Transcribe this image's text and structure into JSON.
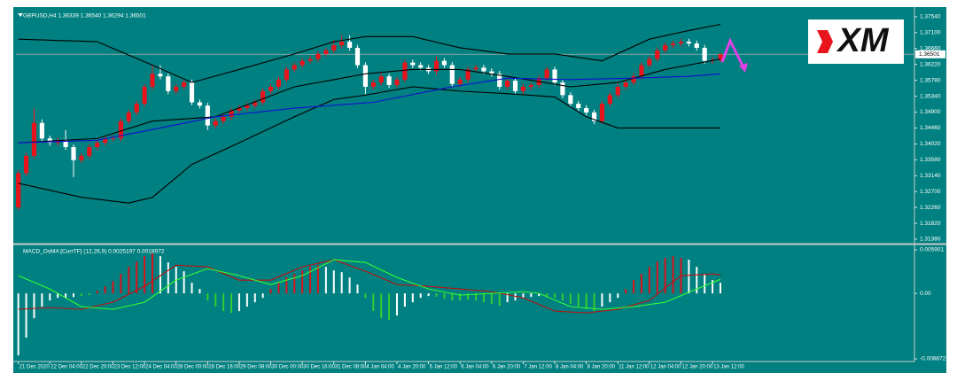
{
  "logo": "XM",
  "chart_data": [
    {
      "type": "candlestick",
      "title": "GBPUSD,H4 1.36339 1.36540 1.36294 1.36501",
      "up_color": "#e8141c",
      "down_color": "#ffffff",
      "open": [
        1.3226,
        1.3321,
        1.3369,
        1.346,
        1.3417,
        1.3405,
        1.3412,
        1.3393,
        1.3357,
        1.3369,
        1.3393,
        1.3405,
        1.3417,
        1.3417,
        1.3465,
        1.3489,
        1.3513,
        1.356,
        1.3596,
        1.3589,
        1.3548,
        1.356,
        1.3572,
        1.3517,
        1.3508,
        1.3453,
        1.3465,
        1.3477,
        1.3494,
        1.3501,
        1.3508,
        1.3517,
        1.3548,
        1.356,
        1.358,
        1.3608,
        1.362,
        1.3632,
        1.3637,
        1.3651,
        1.3661,
        1.3675,
        1.3685,
        1.3668,
        1.362,
        1.356,
        1.3572,
        1.3589,
        1.3565,
        1.358,
        1.3627,
        1.362,
        1.3613,
        1.3603,
        1.3632,
        1.362,
        1.3568,
        1.358,
        1.3608,
        1.3613,
        1.3603,
        1.3596,
        1.356,
        1.3577,
        1.3548,
        1.356,
        1.3565,
        1.3584,
        1.3608,
        1.3572,
        1.3537,
        1.3513,
        1.3501,
        1.3489,
        1.3465,
        1.3513,
        1.3537,
        1.356,
        1.3572,
        1.3589,
        1.362,
        1.3637,
        1.3661,
        1.3675,
        1.368,
        1.3685,
        1.368,
        1.3668,
        1.3632,
        1.36339
      ],
      "high": [
        1.3329,
        1.3377,
        1.35,
        1.347,
        1.3425,
        1.342,
        1.344,
        1.3401,
        1.3377,
        1.3401,
        1.3413,
        1.3425,
        1.3425,
        1.3473,
        1.3497,
        1.3521,
        1.3568,
        1.362,
        1.362,
        1.3597,
        1.3568,
        1.358,
        1.358,
        1.3525,
        1.3516,
        1.3473,
        1.3485,
        1.3502,
        1.3509,
        1.3516,
        1.3525,
        1.3556,
        1.3568,
        1.3588,
        1.3616,
        1.3628,
        1.364,
        1.3645,
        1.3659,
        1.3669,
        1.369,
        1.3703,
        1.3703,
        1.3676,
        1.3628,
        1.358,
        1.3597,
        1.3597,
        1.3588,
        1.3635,
        1.3635,
        1.3628,
        1.3621,
        1.3645,
        1.364,
        1.3628,
        1.3588,
        1.3616,
        1.3621,
        1.3621,
        1.3611,
        1.3604,
        1.3585,
        1.3585,
        1.3568,
        1.3573,
        1.3592,
        1.3616,
        1.3616,
        1.358,
        1.3545,
        1.3521,
        1.3509,
        1.3497,
        1.3521,
        1.3545,
        1.3568,
        1.358,
        1.3597,
        1.3628,
        1.3645,
        1.3669,
        1.3683,
        1.3688,
        1.3693,
        1.3693,
        1.3688,
        1.3676,
        1.3642,
        1.3654
      ],
      "low": [
        1.3218,
        1.3313,
        1.3361,
        1.3409,
        1.3397,
        1.3397,
        1.3385,
        1.331,
        1.3349,
        1.3361,
        1.3385,
        1.3397,
        1.3409,
        1.3409,
        1.3457,
        1.3481,
        1.3505,
        1.3552,
        1.3581,
        1.354,
        1.354,
        1.3552,
        1.3509,
        1.35,
        1.344,
        1.3445,
        1.3457,
        1.3469,
        1.3486,
        1.3493,
        1.35,
        1.3509,
        1.354,
        1.3552,
        1.3572,
        1.36,
        1.3612,
        1.3624,
        1.3629,
        1.3643,
        1.3653,
        1.3667,
        1.366,
        1.3612,
        1.354,
        1.3552,
        1.3564,
        1.3557,
        1.3557,
        1.3572,
        1.3612,
        1.3605,
        1.3595,
        1.3595,
        1.3612,
        1.356,
        1.356,
        1.3572,
        1.36,
        1.3595,
        1.3588,
        1.3552,
        1.3552,
        1.354,
        1.354,
        1.3552,
        1.3557,
        1.3576,
        1.3564,
        1.3529,
        1.3505,
        1.3493,
        1.3481,
        1.3457,
        1.3457,
        1.3505,
        1.3529,
        1.3552,
        1.3564,
        1.3581,
        1.3612,
        1.3629,
        1.3653,
        1.3667,
        1.3672,
        1.3672,
        1.366,
        1.3624,
        1.3624,
        1.36294
      ],
      "close": [
        1.3321,
        1.3369,
        1.346,
        1.3417,
        1.3405,
        1.3412,
        1.3393,
        1.3357,
        1.3369,
        1.3393,
        1.3405,
        1.3417,
        1.3417,
        1.3465,
        1.3489,
        1.3513,
        1.356,
        1.3596,
        1.3589,
        1.3548,
        1.356,
        1.3572,
        1.3517,
        1.3508,
        1.3453,
        1.3465,
        1.3477,
        1.3494,
        1.3501,
        1.3508,
        1.3517,
        1.3548,
        1.356,
        1.358,
        1.3608,
        1.362,
        1.3632,
        1.3637,
        1.3651,
        1.3661,
        1.3675,
        1.3685,
        1.3668,
        1.362,
        1.356,
        1.3572,
        1.3589,
        1.3565,
        1.358,
        1.3627,
        1.362,
        1.3613,
        1.3603,
        1.3632,
        1.362,
        1.3568,
        1.358,
        1.3608,
        1.3613,
        1.3603,
        1.3596,
        1.356,
        1.3577,
        1.3548,
        1.356,
        1.3565,
        1.3584,
        1.3608,
        1.3572,
        1.3537,
        1.3513,
        1.3501,
        1.3489,
        1.3465,
        1.3513,
        1.3537,
        1.356,
        1.3572,
        1.3589,
        1.362,
        1.3637,
        1.3661,
        1.3675,
        1.368,
        1.3685,
        1.368,
        1.3668,
        1.3632,
        1.3634,
        1.36501
      ],
      "series": [
        {
          "color": "#000000",
          "x": [
            0,
            10,
            17,
            22,
            28,
            35,
            40,
            44,
            50,
            56,
            62,
            68,
            74,
            80,
            85,
            89
          ],
          "values": [
            1.3692,
            1.3685,
            1.362,
            1.3572,
            1.3608,
            1.3651,
            1.3685,
            1.3699,
            1.3699,
            1.3668,
            1.3651,
            1.3651,
            1.3632,
            1.3692,
            1.3716,
            1.3733
          ]
        },
        {
          "color": "#000000",
          "x": [
            0,
            8,
            14,
            17,
            22,
            28,
            35,
            40,
            44,
            50,
            56,
            62,
            68,
            72,
            76,
            89
          ],
          "values": [
            1.3293,
            1.3254,
            1.3238,
            1.3254,
            1.3345,
            1.3405,
            1.3477,
            1.3525,
            1.3537,
            1.356,
            1.3548,
            1.3541,
            1.3532,
            1.3477,
            1.3446,
            1.3446
          ]
        },
        {
          "color": "#000000",
          "x": [
            0,
            10,
            17,
            25,
            35,
            44,
            50,
            56,
            62,
            70,
            76,
            82,
            89
          ],
          "values": [
            1.3405,
            1.3417,
            1.3465,
            1.3477,
            1.356,
            1.3596,
            1.3608,
            1.3608,
            1.3589,
            1.356,
            1.3572,
            1.3608,
            1.3637
          ]
        },
        {
          "color": "#1010d0",
          "x": [
            0,
            10,
            18,
            25,
            35,
            45,
            55,
            62,
            70,
            78,
            85,
            89
          ],
          "values": [
            1.3405,
            1.3412,
            1.3446,
            1.3477,
            1.3501,
            1.3517,
            1.356,
            1.3584,
            1.358,
            1.3584,
            1.3589,
            1.3596
          ]
        }
      ],
      "current_price": 1.36501,
      "xlim": [
        -0.3,
        113.6
      ],
      "ylim": [
        1.3133,
        1.3771
      ],
      "yticks": [
        {
          "value": 1.3754,
          "label": "1.37540"
        },
        {
          "value": 1.371,
          "label": "1.37100"
        },
        {
          "value": 1.3666,
          "label": "1.36660"
        },
        {
          "value": 1.3622,
          "label": "1.36220"
        },
        {
          "value": 1.3578,
          "label": "1.35780"
        },
        {
          "value": 1.3534,
          "label": "1.35340"
        },
        {
          "value": 1.349,
          "label": "1.34900"
        },
        {
          "value": 1.3446,
          "label": "1.34460"
        },
        {
          "value": 1.3402,
          "label": "1.34020"
        },
        {
          "value": 1.3358,
          "label": "1.33580"
        },
        {
          "value": 1.3314,
          "label": "1.33140"
        },
        {
          "value": 1.327,
          "label": "1.32700"
        },
        {
          "value": 1.3226,
          "label": "1.32260"
        },
        {
          "value": 1.3182,
          "label": "1.31820"
        },
        {
          "value": 1.3138,
          "label": "1.31380"
        }
      ],
      "grid": false
    },
    {
      "type": "bar",
      "title": "MACD_OsMA [CurrTF] (12,26,9) 0.0025197 0.0018972",
      "values": [
        -0.0084,
        -0.006,
        -0.00336,
        -0.0018,
        -0.00096,
        -0.0006,
        -0.0006,
        -0.00048,
        -0.00036,
        -0.00024,
        0.00036,
        0.00096,
        0.00168,
        0.00264,
        0.0036,
        0.00432,
        0.00504,
        0.0054,
        0.00504,
        0.0042,
        0.0036,
        0.003,
        0.00144,
        0.0006,
        -0.00096,
        -0.0018,
        -0.0024,
        -0.00264,
        -0.0024,
        -0.0018,
        -0.0012,
        -0.0006,
        0.0006,
        0.00144,
        0.00216,
        0.00264,
        0.00312,
        0.0036,
        0.00384,
        0.0036,
        0.00312,
        0.00288,
        0.00216,
        0.0012,
        -0.0006,
        -0.0024,
        -0.00336,
        -0.0036,
        -0.003,
        -0.0018,
        -0.0012,
        -0.0006,
        -0.00036,
        -0.00048,
        -0.00072,
        -0.00096,
        -0.00096,
        -0.00084,
        -0.00096,
        -0.0012,
        -0.00144,
        -0.00168,
        -0.0012,
        -0.00096,
        -0.0006,
        -0.00048,
        -0.00036,
        -0.00036,
        -0.0006,
        -0.00096,
        -0.00144,
        -0.0018,
        -0.00216,
        -0.0024,
        -0.0018,
        -0.0012,
        -0.0006,
        0.0006,
        0.0018,
        0.00264,
        0.0036,
        0.00432,
        0.0048,
        0.00504,
        0.0048,
        0.00456,
        0.0036,
        0.00264,
        0.0018,
        0.00144
      ],
      "bar_colors": [
        "#ffffff",
        "#ffffff",
        "#ffffff",
        "#ffffff",
        "#ffffff",
        "#ffffff",
        "#ffffff",
        "#ffffff",
        "#33cc33",
        "#33cc33",
        "#d8141c",
        "#d8141c",
        "#d8141c",
        "#d8141c",
        "#d8141c",
        "#d8141c",
        "#d8141c",
        "#d8141c",
        "#ffffff",
        "#ffffff",
        "#ffffff",
        "#ffffff",
        "#ffffff",
        "#ffffff",
        "#33cc33",
        "#33cc33",
        "#33cc33",
        "#33cc33",
        "#ffffff",
        "#ffffff",
        "#ffffff",
        "#ffffff",
        "#d8141c",
        "#d8141c",
        "#d8141c",
        "#d8141c",
        "#d8141c",
        "#d8141c",
        "#d8141c",
        "#ffffff",
        "#ffffff",
        "#ffffff",
        "#ffffff",
        "#ffffff",
        "#33cc33",
        "#33cc33",
        "#33cc33",
        "#33cc33",
        "#ffffff",
        "#ffffff",
        "#ffffff",
        "#ffffff",
        "#ffffff",
        "#33cc33",
        "#33cc33",
        "#33cc33",
        "#33cc33",
        "#33cc33",
        "#33cc33",
        "#33cc33",
        "#33cc33",
        "#33cc33",
        "#ffffff",
        "#ffffff",
        "#ffffff",
        "#ffffff",
        "#ffffff",
        "#33cc33",
        "#33cc33",
        "#33cc33",
        "#33cc33",
        "#33cc33",
        "#33cc33",
        "#33cc33",
        "#ffffff",
        "#ffffff",
        "#ffffff",
        "#d8141c",
        "#d8141c",
        "#d8141c",
        "#d8141c",
        "#d8141c",
        "#d8141c",
        "#d8141c",
        "#d8141c",
        "#ffffff",
        "#ffffff",
        "#ffffff",
        "#ffffff",
        "#ffffff"
      ],
      "series": [
        {
          "color": "#c01010",
          "x": [
            0,
            4,
            8,
            12,
            16,
            20,
            24,
            28,
            32,
            36,
            40,
            44,
            48,
            52,
            56,
            60,
            64,
            68,
            72,
            76,
            80,
            84,
            88,
            89
          ],
          "values": [
            -0.00216,
            -0.00192,
            -0.00216,
            -0.0012,
            0.00096,
            0.00384,
            0.0036,
            0.0018,
            0.0018,
            0.0036,
            0.00456,
            0.003,
            0.0012,
            0.00096,
            0.0006,
            0.00024,
            -0.0006,
            -0.0024,
            -0.00264,
            -0.00216,
            -0.00096,
            0.0024,
            0.00264,
            0.00252
          ]
        },
        {
          "color": "#33ff33",
          "x": [
            0,
            4,
            8,
            12,
            16,
            20,
            24,
            28,
            32,
            36,
            40,
            44,
            48,
            52,
            56,
            60,
            64,
            66,
            70,
            74,
            78,
            82,
            86,
            89
          ],
          "values": [
            0.0024,
            0.0006,
            -0.0018,
            -0.00216,
            -0.0012,
            0.0018,
            0.00336,
            0.0024,
            0.0012,
            0.0024,
            0.00456,
            0.0042,
            0.00216,
            0.0006,
            -0.00024,
            0,
            0.00024,
            0,
            -0.0018,
            -0.00216,
            -0.0018,
            -0.0012,
            0.0006,
            0.0019
          ]
        }
      ],
      "xlim": [
        -0.3,
        113.6
      ],
      "ylim": [
        -0.00923,
        0.00638
      ],
      "yticks": [
        0.005901,
        {
          "value": 0,
          "label": "0.00"
        },
        -0.008872
      ],
      "xticks": [
        {
          "value": 0,
          "label": "21 Dec 2020"
        },
        {
          "value": 4,
          "label": "22 Dec 04:00"
        },
        {
          "value": 8,
          "label": "22 Dec 20:00"
        },
        {
          "value": 12,
          "label": "23 Dec 12:00"
        },
        {
          "value": 16,
          "label": "24 Dec 04:00"
        },
        {
          "value": 20,
          "label": "28 Dec 00:00"
        },
        {
          "value": 24,
          "label": "28 Dec 16:00"
        },
        {
          "value": 28,
          "label": "29 Dec 08:00"
        },
        {
          "value": 32,
          "label": "30 Dec 00:00"
        },
        {
          "value": 36,
          "label": "30 Dec 16:00"
        },
        {
          "value": 40,
          "label": "31 Dec 08:00"
        },
        {
          "value": 44,
          "label": "4 Jan 04:00"
        },
        {
          "value": 48,
          "label": "4 Jan 20:00"
        },
        {
          "value": 52,
          "label": "5 Jan 12:00"
        },
        {
          "value": 56,
          "label": "6 Jan 04:00"
        },
        {
          "value": 60,
          "label": "6 Jan 20:00"
        },
        {
          "value": 64,
          "label": "7 Jan 12:00"
        },
        {
          "value": 68,
          "label": "8 Jan 04:00"
        },
        {
          "value": 72,
          "label": "8 Jan 20:00"
        },
        {
          "value": 76,
          "label": "11 Jan 12:00"
        },
        {
          "value": 80,
          "label": "12 Jan 04:00"
        },
        {
          "value": 84,
          "label": "12 Jan 20:00"
        },
        {
          "value": 88,
          "label": "13 Jan 12:00"
        }
      ],
      "grid": false
    }
  ]
}
